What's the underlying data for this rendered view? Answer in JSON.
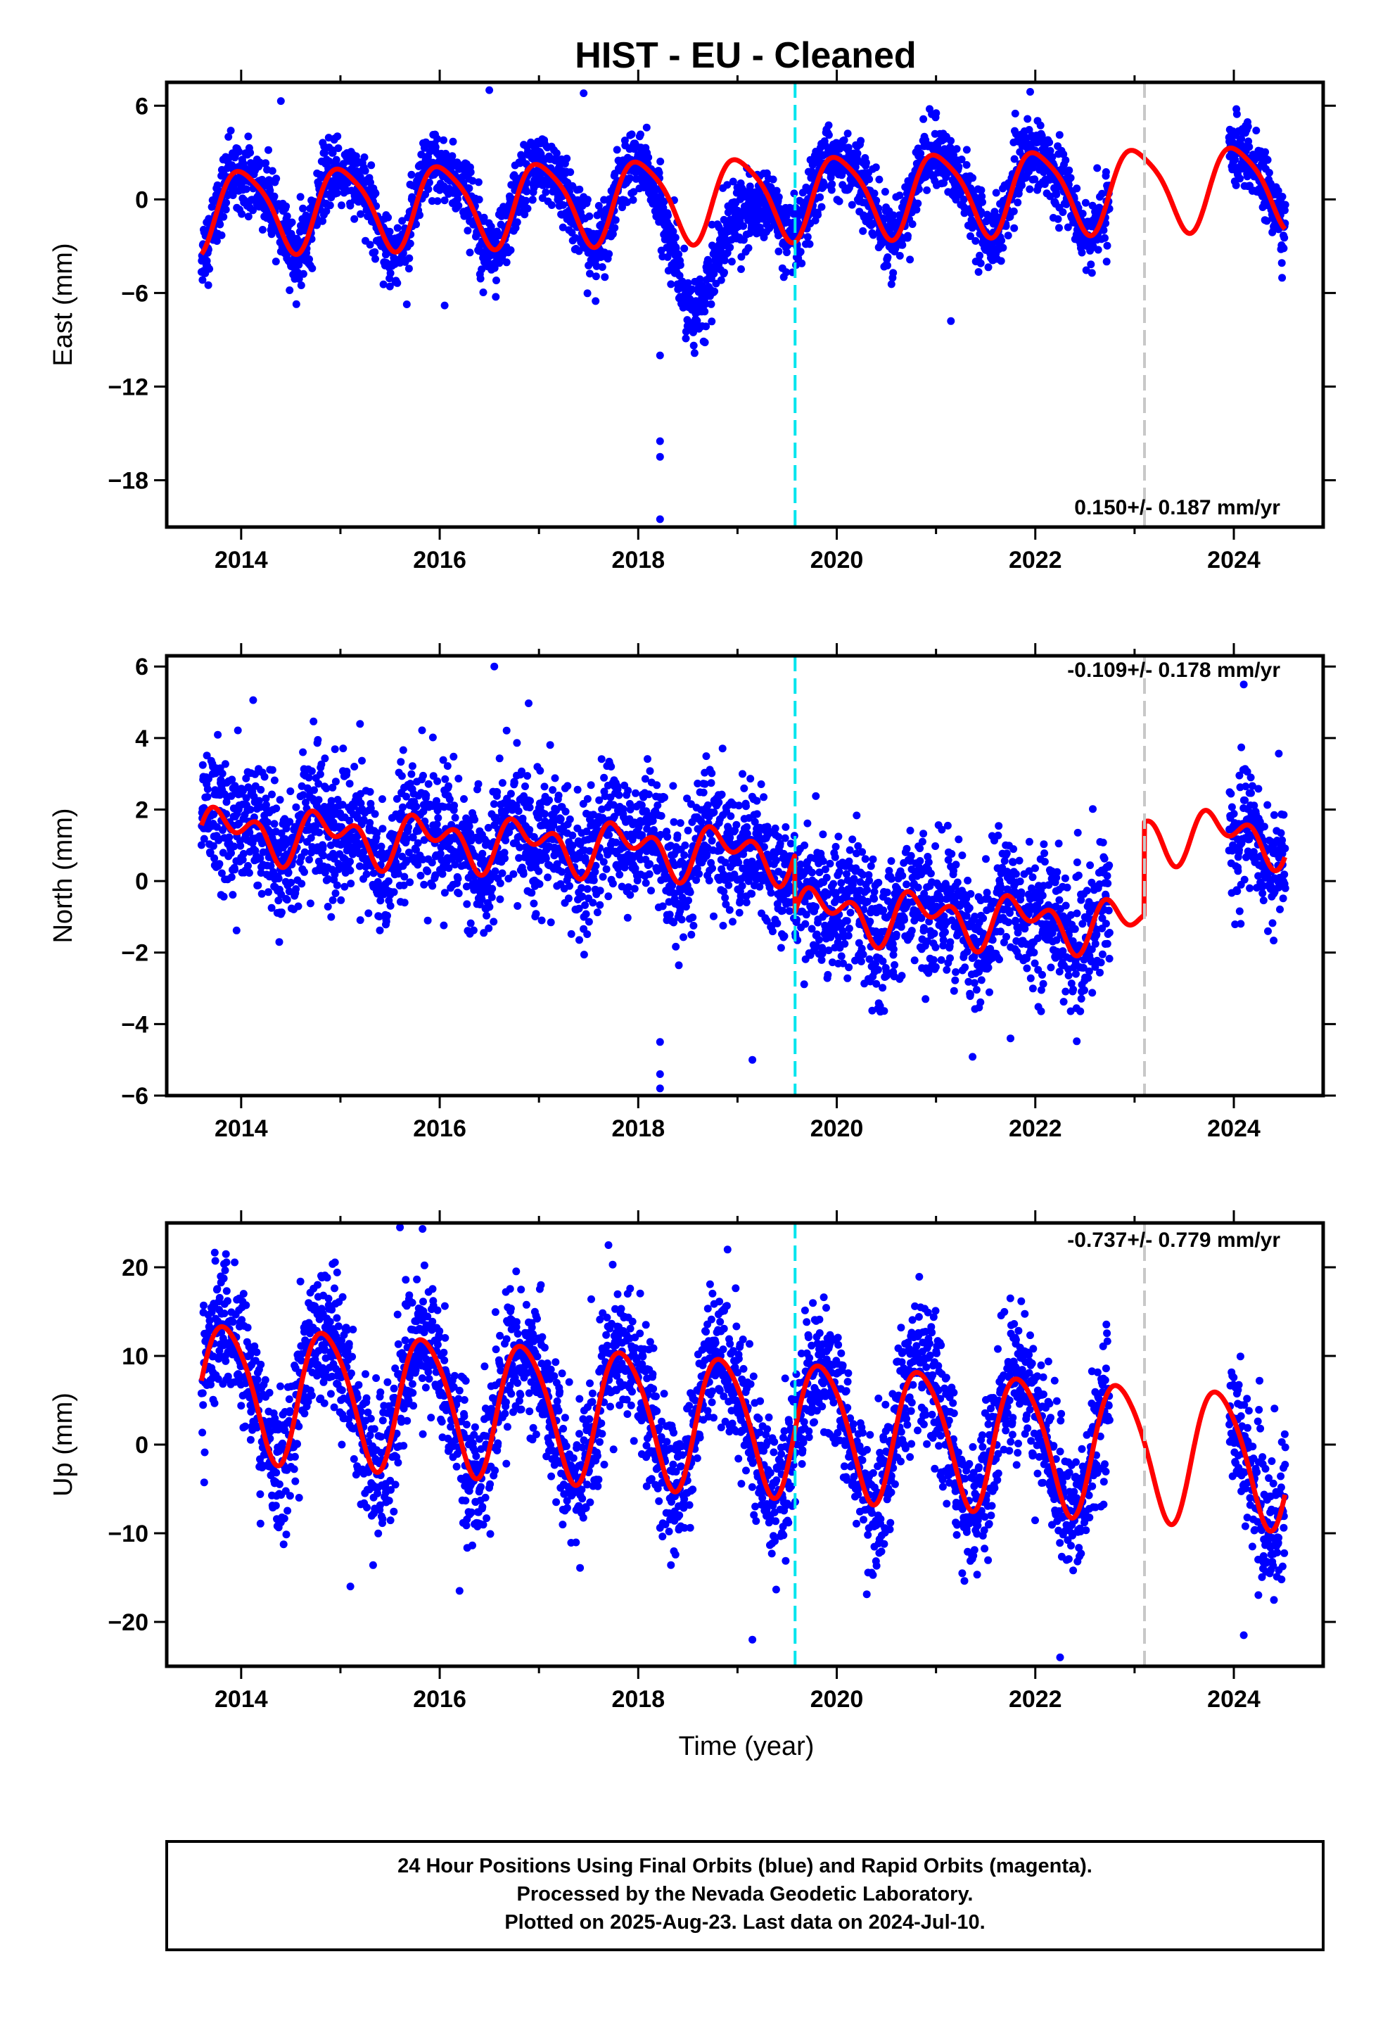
{
  "title": "HIST  - EU - Cleaned",
  "xlabel": "Time (year)",
  "footer": {
    "lines": [
      "24 Hour Positions Using Final Orbits (blue) and Rapid Orbits (magenta).",
      "Processed by the Nevada Geodetic Laboratory.",
      "Plotted on 2025-Aug-23. Last data on 2024-Jul-10."
    ]
  },
  "colors": {
    "data_points": "#0000ff",
    "model_fit": "#ff0000",
    "equipment_change": "#00e5ee",
    "other_event": "#c8c8c8"
  },
  "chart_data": [
    {
      "type": "scatter",
      "component": "east",
      "ylabel": "East (mm)",
      "rate_text": "0.150+/- 0.187 mm/yr",
      "xlim": [
        2013.25,
        2024.9
      ],
      "ylim": [
        -21,
        7.5
      ],
      "xticks": [
        2014,
        2016,
        2018,
        2020,
        2022,
        2024
      ],
      "yticks": [
        6,
        0,
        -6,
        -12,
        -18
      ],
      "grid": false,
      "data_start": 2013.6,
      "data_end": 2024.52,
      "gap": [
        2022.75,
        2023.95
      ],
      "model": {
        "offset": 0.15,
        "amplitude": 2.6,
        "phase_year": 2013.78,
        "rate": 0.15,
        "semiannual_amplitude": 0.5
      },
      "scatter_sigma": 1.1,
      "anomaly": {
        "start": 2018.1,
        "end": 2019.35,
        "shift": -4.5
      },
      "outliers": [
        [
          2018.22,
          -10
        ],
        [
          2018.22,
          -15.5
        ],
        [
          2018.22,
          -16.5
        ],
        [
          2018.22,
          -20.5
        ],
        [
          2016.05,
          -6.8
        ],
        [
          2021.15,
          -7.8
        ],
        [
          2014.4,
          6.3
        ],
        [
          2016.5,
          7.0
        ],
        [
          2017.45,
          6.8
        ]
      ],
      "equipment_change_x": 2019.58,
      "other_event_x": 2023.1
    },
    {
      "type": "scatter",
      "component": "north",
      "ylabel": "North (mm)",
      "rate_text": "-0.109+/- 0.178 mm/yr",
      "xlim": [
        2013.25,
        2024.9
      ],
      "ylim": [
        -6,
        6.3
      ],
      "xticks": [
        2014,
        2016,
        2018,
        2020,
        2022,
        2024
      ],
      "yticks": [
        6,
        4,
        2,
        0,
        -2,
        -4,
        -6
      ],
      "grid": false,
      "data_start": 2013.6,
      "data_end": 2024.52,
      "gap": [
        2022.75,
        2023.95
      ],
      "model": {
        "offset": 0.8,
        "amplitude": 0.5,
        "phase_year": 2013.62,
        "rate": -0.109,
        "semiannual_amplitude": 0.45
      },
      "model_offsets": [
        [
          2019.58,
          -1.6
        ],
        [
          2023.1,
          2.6
        ]
      ],
      "scatter_sigma": 0.9,
      "outliers": [
        [
          2018.22,
          -5.4
        ],
        [
          2018.22,
          -5.8
        ],
        [
          2018.22,
          -4.5
        ],
        [
          2016.55,
          6.0
        ],
        [
          2024.1,
          5.5
        ],
        [
          2019.15,
          -5.0
        ],
        [
          2021.75,
          -4.4
        ]
      ],
      "equipment_change_x": 2019.58,
      "other_event_x": 2023.1
    },
    {
      "type": "scatter",
      "component": "up",
      "ylabel": "Up (mm)",
      "rate_text": "-0.737+/- 0.779 mm/yr",
      "xlim": [
        2013.25,
        2024.9
      ],
      "ylim": [
        -25,
        25
      ],
      "xticks": [
        2014,
        2016,
        2018,
        2020,
        2022,
        2024
      ],
      "yticks": [
        20,
        10,
        0,
        -10,
        -20
      ],
      "grid": false,
      "data_start": 2013.6,
      "data_end": 2024.52,
      "gap": [
        2022.75,
        2023.95
      ],
      "model": {
        "offset": 2.5,
        "amplitude": 7.5,
        "phase_year": 2013.6,
        "rate": -0.737,
        "semiannual_amplitude": 1.0
      },
      "scatter_sigma": 3.8,
      "outliers": [
        [
          2015.6,
          24.5
        ],
        [
          2017.7,
          22.5
        ],
        [
          2018.9,
          22
        ],
        [
          2019.15,
          -22
        ],
        [
          2022.25,
          -24
        ],
        [
          2024.1,
          -21.5
        ],
        [
          2015.1,
          -16
        ],
        [
          2016.2,
          -16.5
        ]
      ],
      "equipment_change_x": 2019.58,
      "other_event_x": 2023.1
    }
  ]
}
